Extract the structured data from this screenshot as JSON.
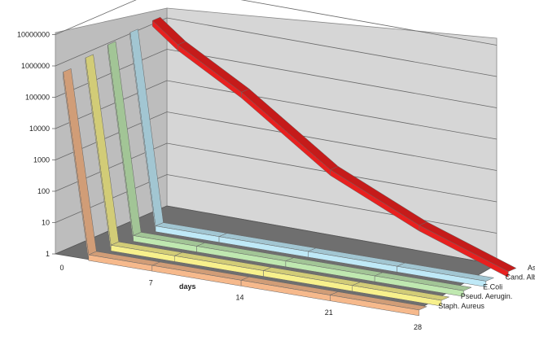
{
  "chart_data": {
    "type": "line",
    "subtype": "3d-ribbon",
    "title": "",
    "xlabel": "days",
    "ylabel": "",
    "yscale": "log",
    "ylim": [
      1,
      10000000
    ],
    "y_ticks": [
      "1",
      "10",
      "100",
      "1000",
      "10000",
      "100000",
      "1000000",
      "10000000"
    ],
    "x_ticks": [
      "0",
      "7",
      "14",
      "21",
      "28"
    ],
    "x": [
      0,
      2,
      7,
      14,
      21,
      28
    ],
    "grid": true,
    "series": [
      {
        "name": "Staph. Aureus",
        "color": "#f6b98c",
        "values": [
          500000,
          1,
          1,
          1,
          1,
          1
        ]
      },
      {
        "name": "Pseud. Aerugin.",
        "color": "#f7f08c",
        "values": [
          700000,
          1,
          1,
          1,
          1,
          1
        ]
      },
      {
        "name": "E.Coli",
        "color": "#bfe8b0",
        "values": [
          900000,
          1,
          1,
          1,
          1,
          1
        ]
      },
      {
        "name": "Cand. Albic.",
        "color": "#bfe9f7",
        "values": [
          1100000,
          1,
          1,
          1,
          1,
          1
        ]
      },
      {
        "name": "Asp. Niger",
        "color": "#e8201f",
        "values": [
          1300000,
          300000,
          20000,
          200,
          10,
          1
        ]
      }
    ]
  }
}
